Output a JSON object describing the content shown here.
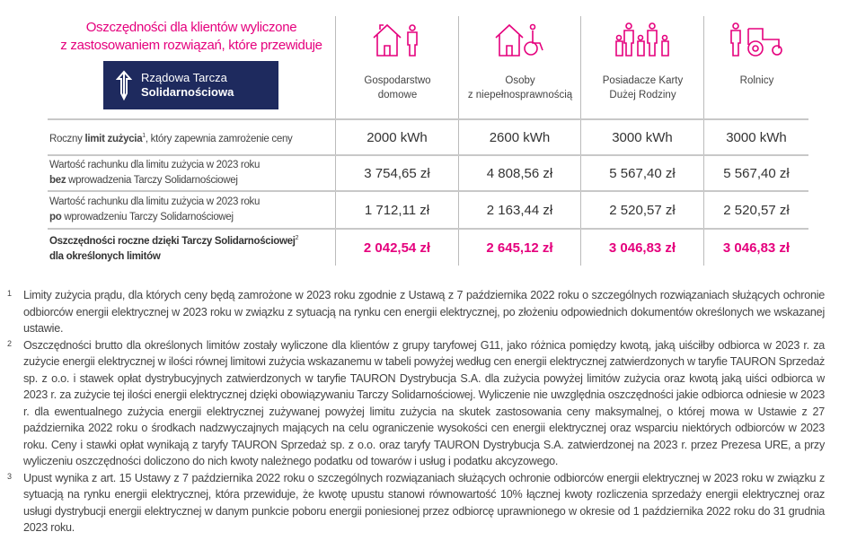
{
  "header": {
    "title_line1": "Oszczędności dla klientów wyliczone",
    "title_line2": "z zastosowaniem rozwiązań, które przewiduje",
    "logo_line1": "Rządowa Tarcza",
    "logo_line2": "Solidarnościowa"
  },
  "columns": [
    {
      "line1": "Gospodarstwo",
      "line2": "domowe",
      "icon": "house-person-icon"
    },
    {
      "line1": "Osoby",
      "line2": "z niepełnosprawnością",
      "icon": "house-wheelchair-icon"
    },
    {
      "line1": "Posiadacze Karty",
      "line2": "Dużej Rodziny",
      "icon": "family-icon"
    },
    {
      "line1": "Rolnicy",
      "line2": "",
      "icon": "farmer-tractor-icon"
    }
  ],
  "rows": [
    {
      "label_pre": "Roczny ",
      "label_bold": "limit zużycia",
      "label_sup": "1",
      "label_post": ", który zapewnia zamrożenie ceny",
      "label_line2_bold": "",
      "label_line2": "",
      "values": [
        "2000 kWh",
        "2600 kWh",
        "3000 kWh",
        "3000 kWh"
      ]
    },
    {
      "label_pre": "Wartość rachunku dla limitu zużycia w 2023 roku",
      "label_line2_bold": "bez",
      "label_line2": " wprowadzenia Tarczy Solidarnościowej",
      "values": [
        "3 754,65 zł",
        "4 808,56 zł",
        "5 567,40 zł",
        "5 567,40 zł"
      ]
    },
    {
      "label_pre": "Wartość rachunku dla limitu zużycia w 2023 roku",
      "label_line2_bold": "po",
      "label_line2": " wprowadzeniu Tarczy Solidarnościowej",
      "values": [
        "1 712,11 zł",
        "2 163,44 zł",
        "2 520,57 zł",
        "2 520,57 zł"
      ]
    },
    {
      "label_bold": "Oszczędności roczne dzięki Tarczy Solidarnościowej",
      "label_sup": "2",
      "label_line2_bold": "dla określonych limitów",
      "values": [
        "2 042,54 zł",
        "2 645,12 zł",
        "3 046,83 zł",
        "3 046,83 zł"
      ]
    }
  ],
  "footnotes": [
    {
      "num": "1",
      "text": "Limity zużycia prądu, dla których ceny będą zamrożone w 2023 roku zgodnie z Ustawą z 7 października 2022 roku o szczególnych rozwiązaniach służących ochronie odbiorców energii elektrycznej w 2023 roku w związku z sytuacją na rynku cen energii elektrycznej, po złożeniu odpowiednich dokumentów określonych we wskazanej ustawie."
    },
    {
      "num": "2",
      "text": "Oszczędności brutto dla określonych limitów zostały wyliczone dla klientów z grupy taryfowej G11, jako różnica pomiędzy kwotą, jaką uiściłby odbiorca w 2023 r. za zużycie energii elektrycznej w ilości równej limitowi zużycia wskazanemu w tabeli powyżej według cen energii elektrycznej zatwierdzonych w taryfie TAURON Sprzedaż sp. z o.o. i stawek opłat dystrybucyjnych zatwierdzonych w taryfie TAURON Dystrybucja S.A. dla zużycia powyżej limitów zużycia oraz kwotą jaką uiści odbiorca w 2023 r. za zużycie tej ilości energii elektrycznej dzięki obowiązywaniu Tarczy Solidarnościowej. Wyliczenie nie uwzględnia oszczędności jakie odbiorca odniesie w 2023 r. dla ewentualnego zużycia energii elektrycznej zużywanej powyżej limitu zużycia na skutek zastosowania ceny maksymalnej, o  której mowa w Ustawie z 27 października 2022 roku o środkach nadzwyczajnych mających na celu ograniczenie wysokości cen energii elektrycznej oraz wsparciu niektórych odbiorców w 2023 roku. Ceny i stawki opłat wynikają z taryfy TAURON Sprzedaż sp. z o.o. oraz taryfy TAURON Dystrybucja S.A. zatwierdzonej na 2023 r. przez Prezesa URE, a przy wyliczeniu oszczędności doliczono do nich kwoty należnego podatku od towarów i usług i podatku akcyzowego."
    },
    {
      "num": "3",
      "text": "Upust wynika z art. 15 Ustawy z 7 października 2022 roku o szczególnych rozwiązaniach służących ochronie odbiorców energii elektrycznej w 2023 roku w związku z sytuacją na rynku energii elektrycznej, która przewiduje, że kwotę upustu stanowi równowartość 10% łącznej kwoty rozliczenia sprzedaży energii elektrycznej oraz usługi dystrybucji energii elektrycznej w danym punkcie poboru energii poniesionej przez odbiorcę uprawnionego w okresie od 1 października 2022 roku do 31 grudnia 2023 roku."
    }
  ],
  "colors": {
    "accent": "#e5007d",
    "logo_bg": "#1e2a5e"
  }
}
